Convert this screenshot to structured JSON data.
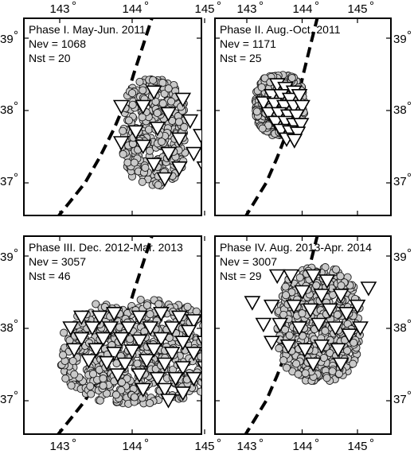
{
  "figure": {
    "lon_ticks": [
      143,
      144,
      145
    ],
    "lat_ticks": [
      39,
      38,
      37
    ],
    "degree_symbol": "°",
    "lon_range": [
      142.5,
      145.5
    ],
    "lat_range": [
      36.5,
      39.3
    ],
    "colors": {
      "quake_fill": "#c9c9c9",
      "station_fill": "#ffffff",
      "trench": "#000000"
    },
    "legend_symbols": {
      "earthquake": "circle",
      "station": "inverted-triangle"
    }
  },
  "panels": [
    {
      "id": "phase1",
      "title": "Phase I. May-Jun. 2011",
      "nev": "Nev = 1068",
      "nst": "Nst = 20",
      "cloud": {
        "lon_min": 143.85,
        "lon_max": 144.75,
        "lat_min": 36.95,
        "lat_max": 38.45,
        "count": 330
      },
      "stations": [
        [
          144.3,
          38.25
        ],
        [
          144.7,
          38.15
        ],
        [
          143.85,
          38.05
        ],
        [
          144.15,
          38.05
        ],
        [
          144.5,
          37.95
        ],
        [
          144.8,
          37.85
        ],
        [
          145.2,
          37.85
        ],
        [
          144.05,
          37.7
        ],
        [
          144.35,
          37.75
        ],
        [
          144.65,
          37.6
        ],
        [
          144.95,
          37.65
        ],
        [
          143.85,
          37.55
        ],
        [
          144.15,
          37.5
        ],
        [
          144.5,
          37.4
        ],
        [
          144.85,
          37.4
        ],
        [
          145.1,
          37.45
        ],
        [
          144.3,
          37.25
        ],
        [
          144.65,
          37.2
        ],
        [
          145.0,
          37.2
        ],
        [
          144.45,
          37.05
        ]
      ]
    },
    {
      "id": "phase2",
      "title": "Phase II. Aug.-Oct. 2011",
      "nev": "Nev = 1171",
      "nst": "Nst = 25",
      "cloud": {
        "lon_min": 143.15,
        "lon_max": 144.05,
        "lat_min": 37.65,
        "lat_max": 38.5,
        "count": 360
      },
      "stations": [
        [
          143.55,
          38.35
        ],
        [
          143.7,
          38.3
        ],
        [
          143.85,
          38.25
        ],
        [
          143.45,
          38.2
        ],
        [
          143.62,
          38.2
        ],
        [
          143.78,
          38.15
        ],
        [
          143.95,
          38.2
        ],
        [
          143.3,
          38.1
        ],
        [
          143.5,
          38.08
        ],
        [
          143.68,
          38.05
        ],
        [
          143.85,
          38.05
        ],
        [
          144.0,
          38.05
        ],
        [
          143.4,
          37.95
        ],
        [
          143.58,
          37.95
        ],
        [
          143.75,
          37.92
        ],
        [
          143.9,
          37.92
        ],
        [
          143.52,
          37.83
        ],
        [
          143.7,
          37.83
        ],
        [
          143.85,
          37.8
        ],
        [
          143.98,
          37.8
        ],
        [
          143.62,
          37.72
        ],
        [
          143.78,
          37.7
        ],
        [
          143.92,
          37.68
        ],
        [
          143.72,
          37.6
        ],
        [
          143.86,
          37.58
        ]
      ]
    },
    {
      "id": "phase3",
      "title": "Phase III. Dec. 2012-Mar. 2013",
      "nev": "Nev = 3057",
      "nst": "Nst = 46",
      "cloud": {
        "lon_min": 143.0,
        "lon_max": 145.2,
        "lat_min": 36.95,
        "lat_max": 38.4,
        "count": 620
      },
      "stations": [
        [
          143.3,
          38.15
        ],
        [
          143.55,
          38.15
        ],
        [
          143.75,
          38.2
        ],
        [
          144.1,
          38.15
        ],
        [
          144.4,
          38.2
        ],
        [
          144.65,
          38.15
        ],
        [
          144.85,
          38.1
        ],
        [
          143.15,
          38.0
        ],
        [
          143.45,
          38.0
        ],
        [
          143.7,
          38.0
        ],
        [
          143.95,
          38.0
        ],
        [
          144.25,
          38.0
        ],
        [
          144.55,
          38.0
        ],
        [
          144.78,
          37.95
        ],
        [
          145.25,
          37.85
        ],
        [
          143.3,
          37.85
        ],
        [
          143.6,
          37.85
        ],
        [
          143.85,
          37.85
        ],
        [
          144.1,
          37.82
        ],
        [
          144.4,
          37.85
        ],
        [
          144.7,
          37.8
        ],
        [
          145.0,
          37.8
        ],
        [
          143.2,
          37.7
        ],
        [
          143.5,
          37.7
        ],
        [
          143.75,
          37.65
        ],
        [
          144.0,
          37.68
        ],
        [
          144.3,
          37.7
        ],
        [
          144.55,
          37.65
        ],
        [
          144.85,
          37.65
        ],
        [
          143.4,
          37.55
        ],
        [
          143.65,
          37.52
        ],
        [
          143.9,
          37.5
        ],
        [
          144.2,
          37.55
        ],
        [
          144.45,
          37.5
        ],
        [
          144.7,
          37.45
        ],
        [
          145.0,
          37.45
        ],
        [
          143.8,
          37.35
        ],
        [
          144.1,
          37.35
        ],
        [
          144.35,
          37.3
        ],
        [
          144.6,
          37.3
        ],
        [
          144.85,
          37.3
        ],
        [
          145.05,
          37.2
        ],
        [
          144.15,
          37.15
        ],
        [
          144.45,
          37.15
        ],
        [
          144.7,
          37.1
        ],
        [
          144.5,
          37.0
        ]
      ]
    },
    {
      "id": "phase4",
      "title": "Phase IV. Aug. 2013-Apr. 2014",
      "nev": "Nev = 3007",
      "nst": "Nst = 29",
      "cloud": {
        "lon_min": 143.55,
        "lon_max": 145.05,
        "lat_min": 37.25,
        "lat_max": 38.85,
        "count": 560
      },
      "stations": [
        [
          143.55,
          38.72
        ],
        [
          143.8,
          38.72
        ],
        [
          144.2,
          38.72
        ],
        [
          144.45,
          38.65
        ],
        [
          145.2,
          38.55
        ],
        [
          144.0,
          38.5
        ],
        [
          144.35,
          38.45
        ],
        [
          144.7,
          38.45
        ],
        [
          143.1,
          38.35
        ],
        [
          143.45,
          38.3
        ],
        [
          143.85,
          38.3
        ],
        [
          144.15,
          38.25
        ],
        [
          144.5,
          38.25
        ],
        [
          144.8,
          38.2
        ],
        [
          145.0,
          38.3
        ],
        [
          143.3,
          38.05
        ],
        [
          143.6,
          38.05
        ],
        [
          143.95,
          38.0
        ],
        [
          144.3,
          38.05
        ],
        [
          144.6,
          38.0
        ],
        [
          144.85,
          37.9
        ],
        [
          145.05,
          38.0
        ],
        [
          143.45,
          37.8
        ],
        [
          143.75,
          37.75
        ],
        [
          144.05,
          37.7
        ],
        [
          144.35,
          37.75
        ],
        [
          144.65,
          37.7
        ],
        [
          144.2,
          37.5
        ],
        [
          144.7,
          37.5
        ]
      ]
    }
  ]
}
